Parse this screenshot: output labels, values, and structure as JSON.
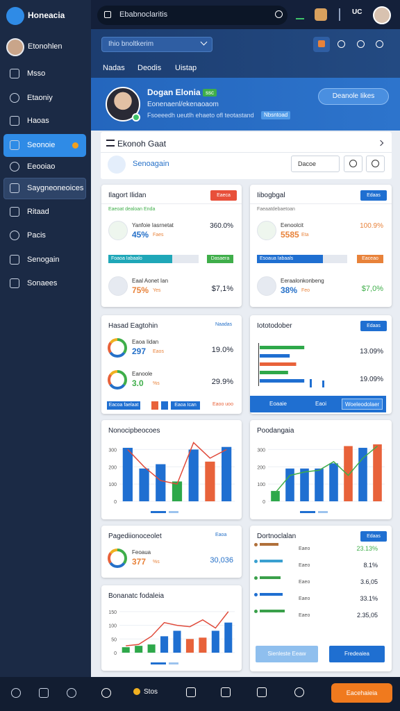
{
  "sidebar": {
    "brand": "Honeacia",
    "user": "Etonohlen",
    "nav": [
      "Msso",
      "Etaoniy",
      "Haoas",
      "Seonoie",
      "Eeooiao",
      "Saygneoneoices",
      "Ritaad",
      "Pacis",
      "Senogain",
      "Sonaees"
    ]
  },
  "topbar": {
    "search": "Ebabnoclaritis",
    "badge": "UC"
  },
  "toolbar": {
    "select": "Ihio bnoltkerim",
    "tabs": [
      "Nadas",
      "Deodis",
      "Uistap"
    ]
  },
  "profile": {
    "name": "Dogan Elonia",
    "badge": "ssc",
    "subtitle": "Eonenaenl/ekenaoaom",
    "desc": "Fsoeeedh ueutlh ehaeto ofl teotastand",
    "tag": "Nbsntoad",
    "button": "Deanole Iikes"
  },
  "panel": {
    "title": "Ekonoh Gaat",
    "tab": "Senoagain",
    "select": "Dacoe"
  },
  "cards": [
    {
      "title": "Ilagort Ilidan",
      "badge": "Eaeca",
      "subtitle": "Eaeoat dealoan Enda",
      "metrics": [
        {
          "name": "Yanfoie Iasrnetat",
          "pct": "45%",
          "unit": "Faes",
          "value": "360.0%"
        },
        {
          "name": "Eaal Aonet Ian",
          "pct": "75%",
          "unit": "Yes",
          "value": "$7,1%"
        }
      ],
      "progress": [
        "Foaoa Iabaalo",
        "Dasaera"
      ]
    },
    {
      "title": "Iibogbgal",
      "badge": "Edaas",
      "subtitle": "Faeaatdebaetoan",
      "metrics": [
        {
          "name": "Eenoolcit",
          "pct": "5585",
          "unit": "Eta",
          "value": "100.9%"
        },
        {
          "name": "Eeraalonkonbeng",
          "pct": "38%",
          "unit": "Feo",
          "value": "$7,0%"
        }
      ],
      "progress": [
        "Esoaua Iabaals",
        "Eaceao"
      ]
    },
    {
      "title": "Hasad Eagtohin",
      "link": "Naadas",
      "metrics": [
        {
          "name": "Eaoa Iidan",
          "pct": "297",
          "unit": "Eaos",
          "value": "19.0%"
        },
        {
          "name": "Eanoole",
          "pct": "3.0",
          "unit": "%s",
          "value": "29.9%"
        }
      ],
      "footer": [
        "Eacoa faelaat",
        "Eaoa Ican",
        "Eaoo uoo"
      ]
    },
    {
      "title": "Iototodober",
      "badge": "Edaas",
      "chart": {
        "type": "hbar",
        "xlim": [
          0,
          60
        ],
        "values": [
          55,
          37,
          45,
          35,
          55
        ],
        "colors": [
          "#2ea84a",
          "#1f6fd1",
          "#e8623a",
          "#2ea84a",
          "#1f6fd1"
        ]
      },
      "values": [
        "13.09%",
        "19.09%"
      ],
      "footer": [
        "Eoaaie",
        "Eaoi",
        "Woeleodolaer"
      ]
    },
    {
      "title": "Nonocipbeocoes",
      "chart": {
        "type": "bar",
        "ylim": [
          0,
          350
        ],
        "yticks": [
          0,
          100,
          200,
          300
        ],
        "values": [
          310,
          190,
          215,
          115,
          300,
          230,
          315
        ],
        "colors": [
          "#1f6fd1",
          "#1f6fd1",
          "#1f6fd1",
          "#2ea84a",
          "#1f6fd1",
          "#e8623a",
          "#1f6fd1"
        ],
        "line": {
          "color": "#e04a3a",
          "values": [
            300,
            200,
            120,
            100,
            340,
            250,
            300
          ]
        }
      }
    },
    {
      "title": "Poodangaia",
      "chart": {
        "type": "bar",
        "ylim": [
          0,
          350
        ],
        "yticks": [
          0,
          100,
          200,
          300
        ],
        "values": [
          60,
          190,
          190,
          190,
          220,
          320,
          310,
          330
        ],
        "colors": [
          "#2ea84a",
          "#1f6fd1",
          "#1f6fd1",
          "#1f6fd1",
          "#1f6fd1",
          "#e8623a",
          "#1f6fd1",
          "#e8623a"
        ],
        "line": {
          "color": "#3fae4a",
          "values": [
            50,
            150,
            170,
            180,
            230,
            150,
            250,
            320
          ]
        }
      }
    },
    {
      "title": "Pagediionoceolet",
      "link": "Eaoa",
      "metrics": [
        {
          "name": "Feoaua",
          "pct": "377",
          "unit": "%s",
          "value": "30,036"
        }
      ]
    },
    {
      "title": "Dortnoclalan",
      "badge": "Edaas",
      "rows": [
        {
          "label": "Eaeo",
          "value": "23.13%"
        },
        {
          "label": "Eaeo",
          "value": "8.1%"
        },
        {
          "label": "Eaeo",
          "value": "3.6,05"
        },
        {
          "label": "Eaeo",
          "value": "33.1%"
        },
        {
          "label": "Eaeo",
          "value": "2.35,05"
        }
      ],
      "chart": {
        "type": "hbar",
        "xlim": [
          0,
          100
        ],
        "values": [
          45,
          55,
          50,
          55,
          60
        ],
        "colors": [
          "#b0703a",
          "#3aa0d0",
          "#3aa04a",
          "#1f6fd1",
          "#3aa04a"
        ]
      },
      "footer": [
        "Sienleste Eeaw",
        "Fredeaiea"
      ]
    },
    {
      "title": "Bonanatc fodaleia",
      "chart": {
        "type": "bar",
        "ylim": [
          0,
          170
        ],
        "yticks": [
          0,
          50,
          100,
          150
        ],
        "values": [
          20,
          25,
          30,
          60,
          80,
          50,
          55,
          80,
          110
        ],
        "colors": [
          "#2ea84a",
          "#2ea84a",
          "#2ea84a",
          "#1f6fd1",
          "#1f6fd1",
          "#e8623a",
          "#e8623a",
          "#1f6fd1",
          "#1f6fd1"
        ],
        "line": {
          "color": "#e04a3a",
          "values": [
            25,
            30,
            60,
            110,
            100,
            95,
            120,
            90,
            150
          ]
        }
      }
    }
  ],
  "bottom": {
    "coins": "Stos",
    "button": "Eacehaieia"
  }
}
